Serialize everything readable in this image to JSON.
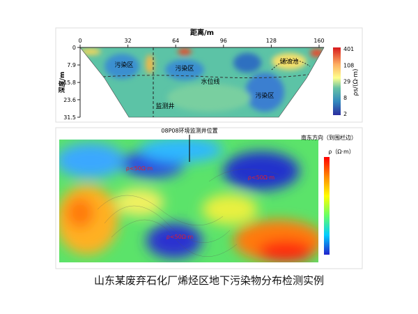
{
  "top_panel": {
    "x_label": "距离/m",
    "x_ticks": [
      0,
      32,
      64,
      96,
      128,
      160
    ],
    "y_label": "深度/m",
    "y_ticks": [
      0,
      7.9,
      15.8,
      23.6,
      31.5
    ],
    "colorbar_label": "ρs/(Ω·m)",
    "colorbar_ticks": [
      401,
      108,
      29,
      8,
      2
    ],
    "annotations": [
      "污染区",
      "污染区",
      "水位线",
      "储油池",
      "污染区",
      "监测井"
    ]
  },
  "bottom_panel": {
    "well_label": "08P08环境监测井位置",
    "direction_label": "南东方向（到围栏边）",
    "colorbar_label": "ρ（Ω·m）",
    "annotations": [
      "ρ<50Ω·m",
      "ρ<50Ω·m",
      "ρ<50Ω·m"
    ]
  },
  "caption": "山东某废弃石化厂烯烃区地下污染物分布检测实例"
}
